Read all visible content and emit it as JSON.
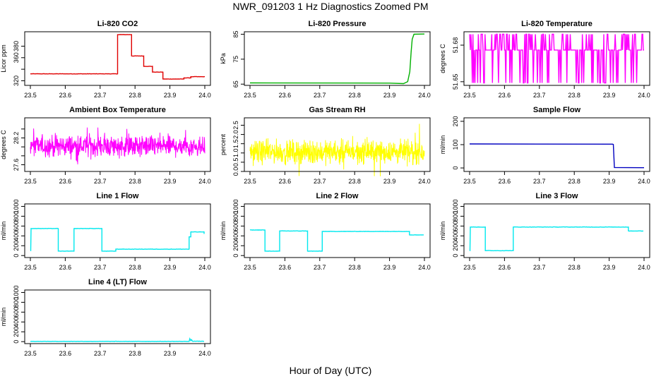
{
  "figure": {
    "title": "NWR_091203  1 Hz Diagnostics Zoomed PM",
    "xlabel": "Hour of Day (UTC)"
  },
  "colors": {
    "red": "#e00000",
    "green": "#00b000",
    "magenta": "#ff00ff",
    "yellow": "#ffff00",
    "blue": "#0000c0",
    "cyan": "#00e8ee",
    "axis": "#000000"
  },
  "chart_data": [
    {
      "type": "line",
      "title": "Li-820 CO2",
      "xlabel": "",
      "ylabel": "Licor ppm",
      "color": "red",
      "style": "steps",
      "xlim": [
        23.5,
        24.0
      ],
      "xticks": [
        23.5,
        23.6,
        23.7,
        23.8,
        23.9,
        24.0
      ],
      "ylim": [
        312,
        405
      ],
      "yticks": [
        320,
        340,
        360,
        380
      ],
      "ytick_labels": [
        "320",
        "",
        "360",
        "380"
      ],
      "series": [
        {
          "name": "CO2",
          "x": [
            23.5,
            23.75,
            23.75,
            23.79,
            23.79,
            23.825,
            23.825,
            23.85,
            23.85,
            23.88,
            23.88,
            23.94,
            23.94,
            23.96,
            23.96,
            24.0
          ],
          "y": [
            332,
            332,
            400,
            400,
            363,
            363,
            345,
            345,
            335,
            335,
            323,
            323,
            325,
            325,
            327,
            327
          ]
        }
      ]
    },
    {
      "type": "line",
      "title": "Li-820 Pressure",
      "xlabel": "",
      "ylabel": "kPa",
      "color": "green",
      "style": "lines",
      "xlim": [
        23.5,
        24.0
      ],
      "xticks": [
        23.5,
        23.6,
        23.7,
        23.8,
        23.9,
        24.0
      ],
      "ylim": [
        64.5,
        86
      ],
      "yticks": [
        65,
        75,
        85
      ],
      "ytick_labels": [
        "65",
        "75",
        "85"
      ],
      "series": [
        {
          "name": "Pressure",
          "x": [
            23.5,
            23.9,
            23.94,
            23.952,
            23.958,
            23.962,
            23.965,
            23.97,
            24.0
          ],
          "y": [
            65.5,
            65.4,
            65.2,
            66,
            70,
            78,
            83,
            85,
            85.1
          ]
        }
      ]
    },
    {
      "type": "line",
      "title": "Li-820 Temperature",
      "xlabel": "",
      "ylabel": "degrees C",
      "color": "magenta",
      "style": "bistable",
      "xlim": [
        23.5,
        24.0
      ],
      "xticks": [
        23.5,
        23.6,
        23.7,
        23.8,
        23.9,
        24.0
      ],
      "ylim": [
        51.647,
        51.691
      ],
      "yticks": [
        51.65,
        51.68
      ],
      "ytick_labels": [
        "51.65",
        "51.68"
      ],
      "levels": [
        51.649,
        51.676,
        51.689
      ]
    },
    {
      "type": "line",
      "title": "Ambient Box Temperature",
      "xlabel": "",
      "ylabel": "degrees C",
      "color": "magenta",
      "style": "noise",
      "xlim": [
        23.5,
        24.0
      ],
      "xticks": [
        23.5,
        23.6,
        23.7,
        23.8,
        23.9,
        24.0
      ],
      "ylim": [
        27.45,
        28.65
      ],
      "yticks": [
        27.6,
        27.8,
        28.0,
        28.2,
        28.4
      ],
      "ytick_labels": [
        "27.6",
        "",
        "",
        "28.2",
        ""
      ],
      "mean": 28.02,
      "spread": 0.35
    },
    {
      "type": "line",
      "title": "Gas Stream RH",
      "xlabel": "",
      "ylabel": "percent",
      "color": "yellow",
      "style": "noise",
      "xlim": [
        23.5,
        24.0
      ],
      "xticks": [
        23.5,
        23.6,
        23.7,
        23.8,
        23.9,
        24.0
      ],
      "ylim": [
        0,
        2.9
      ],
      "yticks": [
        0.0,
        0.5,
        1.0,
        1.5,
        2.0,
        2.5
      ],
      "ytick_labels": [
        "0.0",
        "0.5",
        "1.0",
        "1.5",
        "2.0",
        "2.5"
      ],
      "mean": 1.05,
      "spread": 0.9
    },
    {
      "type": "line",
      "title": "Sample Flow",
      "xlabel": "",
      "ylabel": "ml/min",
      "color": "blue",
      "style": "lines",
      "xlim": [
        23.5,
        24.0
      ],
      "xticks": [
        23.5,
        23.6,
        23.7,
        23.8,
        23.9,
        24.0
      ],
      "ylim": [
        -15,
        215
      ],
      "yticks": [
        0,
        100,
        200
      ],
      "ytick_labels": [
        "0",
        "100",
        "200"
      ],
      "series": [
        {
          "name": "Sample Flow",
          "x": [
            23.5,
            23.91,
            23.912,
            23.915,
            24.0
          ],
          "y": [
            103,
            102,
            101,
            2,
            1
          ]
        }
      ]
    },
    {
      "type": "line",
      "title": "Line 1 Flow",
      "xlabel": "",
      "ylabel": "ml/min",
      "color": "cyan",
      "style": "steps",
      "xlim": [
        23.5,
        24.0
      ],
      "xticks": [
        23.5,
        23.6,
        23.7,
        23.8,
        23.9,
        24.0
      ],
      "ylim": [
        -40,
        1050
      ],
      "yticks": [
        0,
        200,
        400,
        600,
        800,
        1000
      ],
      "ytick_labels": [
        "0",
        "200",
        "400",
        "600",
        "800",
        "1000"
      ],
      "series": [
        {
          "name": "Line 1",
          "x": [
            23.5,
            23.501,
            23.502,
            23.58,
            23.58,
            23.625,
            23.625,
            23.705,
            23.705,
            23.745,
            23.745,
            23.955,
            23.955,
            23.96,
            23.96,
            23.998,
            23.998
          ],
          "y": [
            100,
            100,
            550,
            550,
            90,
            90,
            550,
            550,
            90,
            90,
            130,
            130,
            380,
            380,
            480,
            480,
            440
          ]
        }
      ]
    },
    {
      "type": "line",
      "title": "Line 2 Flow",
      "xlabel": "",
      "ylabel": "ml/min",
      "color": "cyan",
      "style": "steps",
      "xlim": [
        23.5,
        24.0
      ],
      "xticks": [
        23.5,
        23.6,
        23.7,
        23.8,
        23.9,
        24.0
      ],
      "ylim": [
        -40,
        1050
      ],
      "yticks": [
        0,
        200,
        400,
        600,
        800,
        1000
      ],
      "ytick_labels": [
        "0",
        "200",
        "400",
        "600",
        "800",
        "1000"
      ],
      "series": [
        {
          "name": "Line 2",
          "x": [
            23.5,
            23.543,
            23.543,
            23.585,
            23.585,
            23.665,
            23.665,
            23.707,
            23.707,
            23.957,
            23.957,
            23.998
          ],
          "y": [
            520,
            520,
            90,
            90,
            500,
            500,
            90,
            90,
            490,
            490,
            420,
            420
          ]
        }
      ]
    },
    {
      "type": "line",
      "title": "Line 3 Flow",
      "xlabel": "",
      "ylabel": "ml/min",
      "color": "cyan",
      "style": "steps",
      "xlim": [
        23.5,
        24.0
      ],
      "xticks": [
        23.5,
        23.6,
        23.7,
        23.8,
        23.9,
        24.0
      ],
      "ylim": [
        -40,
        1050
      ],
      "yticks": [
        0,
        200,
        400,
        600,
        800,
        1000
      ],
      "ytick_labels": [
        "0",
        "200",
        "400",
        "600",
        "800",
        "1000"
      ],
      "series": [
        {
          "name": "Line 3",
          "x": [
            23.5,
            23.501,
            23.502,
            23.545,
            23.545,
            23.625,
            23.625,
            23.665,
            23.665,
            23.955,
            23.955,
            23.998
          ],
          "y": [
            100,
            100,
            580,
            580,
            100,
            100,
            580,
            580,
            580,
            580,
            500,
            500
          ]
        }
      ]
    },
    {
      "type": "line",
      "title": "Line 4 (LT) Flow",
      "xlabel": "",
      "ylabel": "ml/min",
      "color": "cyan",
      "style": "lines",
      "xlim": [
        23.5,
        24.0
      ],
      "xticks": [
        23.5,
        23.6,
        23.7,
        23.8,
        23.9,
        24.0
      ],
      "ylim": [
        -40,
        1050
      ],
      "yticks": [
        0,
        200,
        400,
        600,
        800,
        1000
      ],
      "ytick_labels": [
        "0",
        "200",
        "400",
        "600",
        "800",
        "1000"
      ],
      "series": [
        {
          "name": "Line 4",
          "x": [
            23.5,
            23.955,
            23.957,
            23.96,
            23.962,
            23.965,
            23.998
          ],
          "y": [
            5,
            5,
            60,
            20,
            40,
            8,
            8
          ]
        }
      ]
    }
  ]
}
